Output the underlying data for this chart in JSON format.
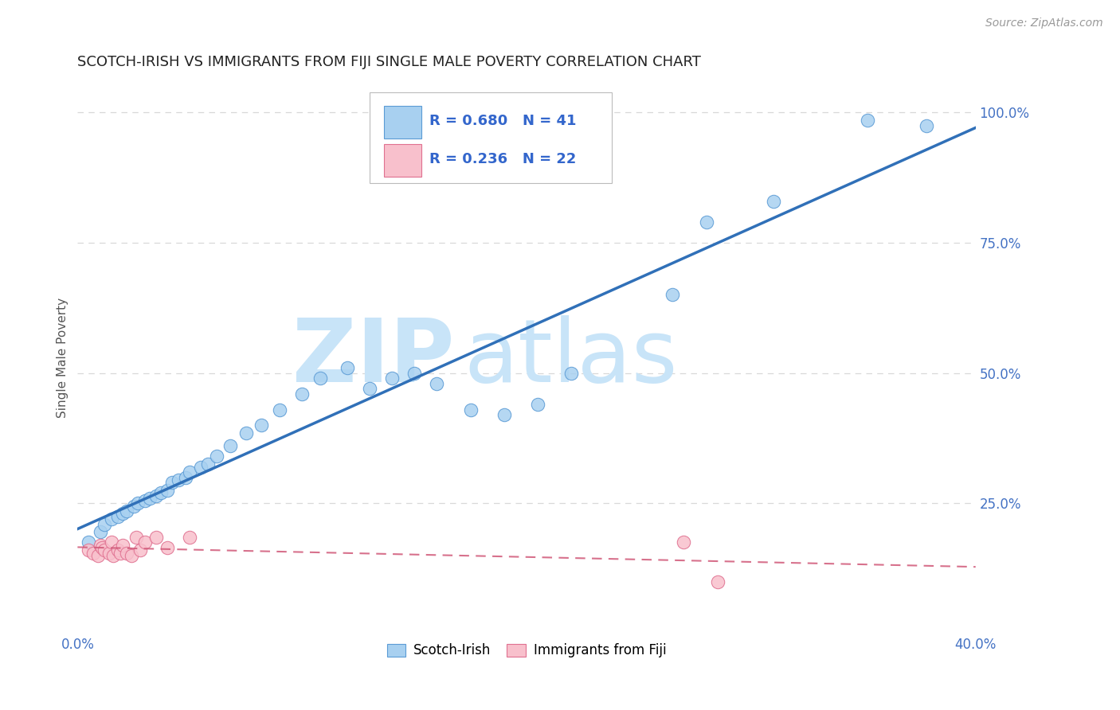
{
  "title": "SCOTCH-IRISH VS IMMIGRANTS FROM FIJI SINGLE MALE POVERTY CORRELATION CHART",
  "source": "Source: ZipAtlas.com",
  "ylabel": "Single Male Poverty",
  "watermark_zip": "ZIP",
  "watermark_atlas": "atlas",
  "legend_label1": "Scotch-Irish",
  "legend_label2": "Immigrants from Fiji",
  "R1": 0.68,
  "N1": 41,
  "R2": 0.236,
  "N2": 22,
  "blue_color": "#a8d0f0",
  "blue_edge_color": "#5b9bd5",
  "blue_line_color": "#3070b8",
  "pink_color": "#f8c0cc",
  "pink_edge_color": "#e07090",
  "pink_line_color": "#d05878",
  "blue_dots_x": [
    0.005,
    0.01,
    0.012,
    0.015,
    0.018,
    0.02,
    0.022,
    0.025,
    0.027,
    0.03,
    0.032,
    0.035,
    0.037,
    0.04,
    0.042,
    0.045,
    0.048,
    0.05,
    0.055,
    0.058,
    0.062,
    0.068,
    0.075,
    0.082,
    0.09,
    0.1,
    0.108,
    0.12,
    0.13,
    0.14,
    0.15,
    0.16,
    0.175,
    0.19,
    0.205,
    0.22,
    0.265,
    0.28,
    0.31,
    0.352,
    0.378
  ],
  "blue_dots_y": [
    0.175,
    0.195,
    0.21,
    0.22,
    0.225,
    0.23,
    0.235,
    0.245,
    0.25,
    0.255,
    0.26,
    0.265,
    0.27,
    0.275,
    0.29,
    0.295,
    0.3,
    0.31,
    0.32,
    0.325,
    0.34,
    0.36,
    0.385,
    0.4,
    0.43,
    0.46,
    0.49,
    0.51,
    0.47,
    0.49,
    0.5,
    0.48,
    0.43,
    0.42,
    0.44,
    0.5,
    0.65,
    0.79,
    0.83,
    0.985,
    0.975
  ],
  "pink_dots_x": [
    0.005,
    0.007,
    0.009,
    0.01,
    0.011,
    0.012,
    0.014,
    0.015,
    0.016,
    0.018,
    0.019,
    0.02,
    0.022,
    0.024,
    0.026,
    0.028,
    0.03,
    0.035,
    0.04,
    0.05,
    0.27,
    0.285
  ],
  "pink_dots_y": [
    0.16,
    0.155,
    0.15,
    0.17,
    0.165,
    0.16,
    0.155,
    0.175,
    0.15,
    0.16,
    0.155,
    0.17,
    0.155,
    0.15,
    0.185,
    0.16,
    0.175,
    0.185,
    0.165,
    0.185,
    0.175,
    0.1
  ],
  "xlim": [
    0.0,
    0.4
  ],
  "ylim": [
    0.0,
    1.06
  ],
  "background_color": "#ffffff",
  "grid_color": "#d8d8d8",
  "dot_size": 100,
  "watermark_color": "#c8e4f8",
  "watermark_fontsize_zip": 80,
  "watermark_fontsize_atlas": 80
}
